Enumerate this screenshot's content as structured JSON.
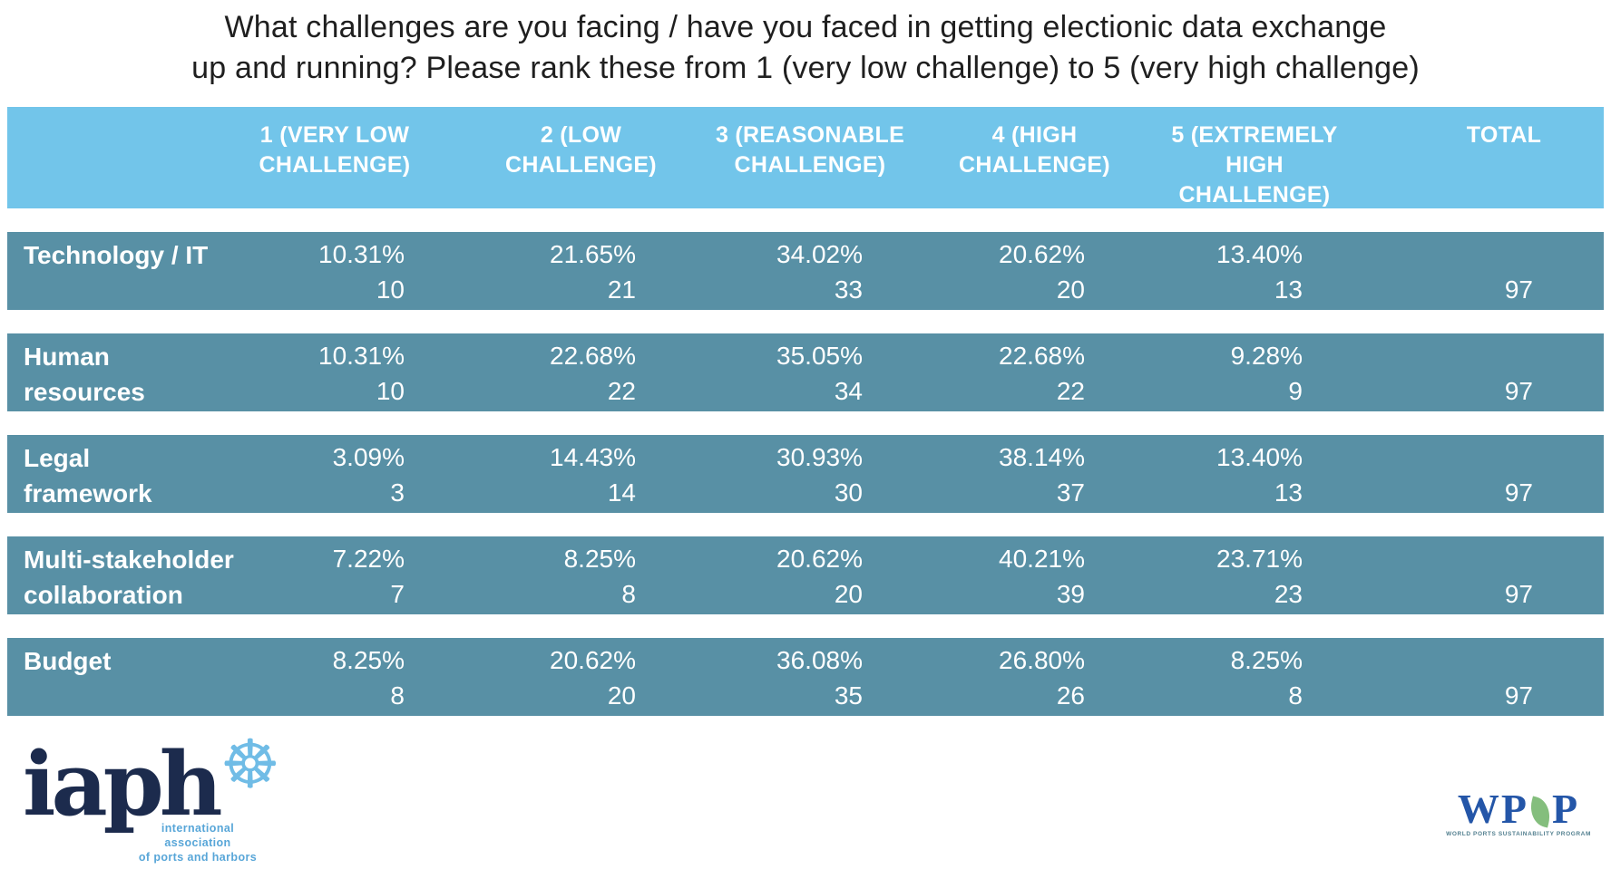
{
  "title": {
    "line1": "What challenges are you facing / have you faced in getting electionic data exchange",
    "line2": "up and running? Please rank these from 1 (very low challenge) to 5 (very high challenge)"
  },
  "table": {
    "headers": [
      {
        "lines": [
          "1 (VERY LOW",
          "CHALLENGE)",
          ""
        ]
      },
      {
        "lines": [
          "2 (LOW",
          "CHALLENGE)",
          ""
        ]
      },
      {
        "lines": [
          "3 (REASONABLE",
          "CHALLENGE)",
          ""
        ]
      },
      {
        "lines": [
          "4 (HIGH",
          "CHALLENGE)",
          ""
        ]
      },
      {
        "lines": [
          "5 (EXTREMELY",
          "HIGH",
          "CHALLENGE)"
        ]
      },
      {
        "lines": [
          "TOTAL",
          "",
          ""
        ]
      }
    ],
    "rows": [
      {
        "label": [
          "Technology / IT",
          ""
        ],
        "cols": [
          {
            "pct": "10.31%",
            "n": "10"
          },
          {
            "pct": "21.65%",
            "n": "21"
          },
          {
            "pct": "34.02%",
            "n": "33"
          },
          {
            "pct": "20.62%",
            "n": "20"
          },
          {
            "pct": "13.40%",
            "n": "13"
          }
        ],
        "total": "97"
      },
      {
        "label": [
          "Human",
          "resources"
        ],
        "cols": [
          {
            "pct": "10.31%",
            "n": "10"
          },
          {
            "pct": "22.68%",
            "n": "22"
          },
          {
            "pct": "35.05%",
            "n": "34"
          },
          {
            "pct": "22.68%",
            "n": "22"
          },
          {
            "pct": "9.28%",
            "n": "9"
          }
        ],
        "total": "97"
      },
      {
        "label": [
          "Legal",
          "framework"
        ],
        "cols": [
          {
            "pct": "3.09%",
            "n": "3"
          },
          {
            "pct": "14.43%",
            "n": "14"
          },
          {
            "pct": "30.93%",
            "n": "30"
          },
          {
            "pct": "38.14%",
            "n": "37"
          },
          {
            "pct": "13.40%",
            "n": "13"
          }
        ],
        "total": "97"
      },
      {
        "label": [
          "Multi-stakeholder",
          "collaboration"
        ],
        "cols": [
          {
            "pct": "7.22%",
            "n": "7"
          },
          {
            "pct": "8.25%",
            "n": "8"
          },
          {
            "pct": "20.62%",
            "n": "20"
          },
          {
            "pct": "40.21%",
            "n": "39"
          },
          {
            "pct": "23.71%",
            "n": "23"
          }
        ],
        "total": "97"
      },
      {
        "label": [
          "Budget",
          ""
        ],
        "cols": [
          {
            "pct": "8.25%",
            "n": "8"
          },
          {
            "pct": "20.62%",
            "n": "20"
          },
          {
            "pct": "36.08%",
            "n": "35"
          },
          {
            "pct": "26.80%",
            "n": "26"
          },
          {
            "pct": "8.25%",
            "n": "8"
          }
        ],
        "total": "97"
      }
    ]
  },
  "chart_data": {
    "type": "table",
    "title": "What challenges are you facing / have you faced in getting electionic data exchange up and running? Please rank these from 1 (very low challenge) to 5 (very high challenge)",
    "columns": [
      "1 (Very low challenge)",
      "2 (Low challenge)",
      "3 (Reasonable challenge)",
      "4 (High challenge)",
      "5 (Extremely high challenge)",
      "Total"
    ],
    "rows": [
      {
        "label": "Technology / IT",
        "percentages": [
          10.31,
          21.65,
          34.02,
          20.62,
          13.4
        ],
        "counts": [
          10,
          21,
          33,
          20,
          13
        ],
        "total": 97
      },
      {
        "label": "Human resources",
        "percentages": [
          10.31,
          22.68,
          35.05,
          22.68,
          9.28
        ],
        "counts": [
          10,
          22,
          34,
          22,
          9
        ],
        "total": 97
      },
      {
        "label": "Legal framework",
        "percentages": [
          3.09,
          14.43,
          30.93,
          38.14,
          13.4
        ],
        "counts": [
          3,
          14,
          30,
          37,
          13
        ],
        "total": 97
      },
      {
        "label": "Multi-stakeholder collaboration",
        "percentages": [
          7.22,
          8.25,
          20.62,
          40.21,
          23.71
        ],
        "counts": [
          7,
          8,
          20,
          39,
          23
        ],
        "total": 97
      },
      {
        "label": "Budget",
        "percentages": [
          8.25,
          20.62,
          36.08,
          26.8,
          8.25
        ],
        "counts": [
          8,
          20,
          35,
          26,
          8
        ],
        "total": 97
      }
    ]
  },
  "footer": {
    "iaph": {
      "wordmark": "iaph",
      "wheel_glyph": "☸",
      "tagline_line1": "international association",
      "tagline_line2": "of ports and harbors"
    },
    "wpsp": {
      "letters_before": "WP",
      "letters_after": "P",
      "tagline": "WORLD PORTS SUSTAINABILITY PROGRAM"
    }
  },
  "colors": {
    "header_bg": "#72C5EA",
    "row_bg": "#5890A5",
    "table_text": "#FFFFFF",
    "title_text": "#1F1F1F",
    "iaph_navy": "#1C2B4D",
    "iaph_blue": "#58A6D8",
    "wpsp_blue": "#2456A8",
    "wpsp_green": "#84BE7D"
  }
}
